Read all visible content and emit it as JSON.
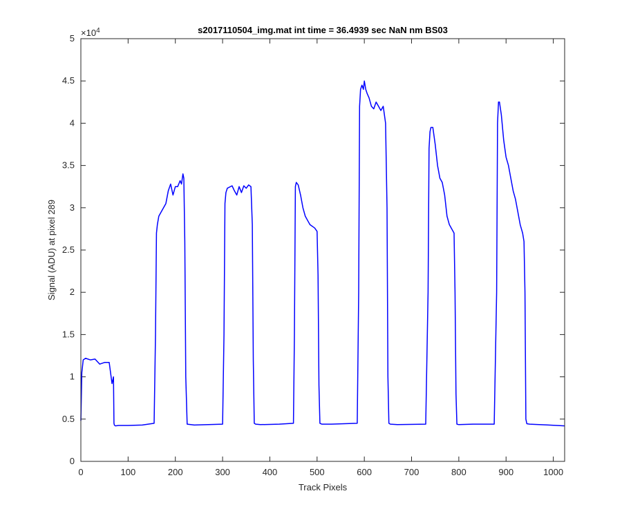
{
  "chart_data": {
    "type": "line",
    "title": "s2017110504_img.mat int time = 36.4939 sec  NaN nm BS03",
    "xlabel": "Track Pixels",
    "ylabel": "Signal (ADU) at pixel 289",
    "exponent_label": "×10",
    "exponent_power": "4",
    "xlim": [
      0,
      1024
    ],
    "ylim": [
      0,
      50000
    ],
    "x_ticks": [
      0,
      100,
      200,
      300,
      400,
      500,
      600,
      700,
      800,
      900,
      1000
    ],
    "x_tick_labels": [
      "0",
      "100",
      "200",
      "300",
      "400",
      "500",
      "600",
      "700",
      "800",
      "900",
      "1000"
    ],
    "y_ticks": [
      0,
      5000,
      10000,
      15000,
      20000,
      25000,
      30000,
      35000,
      40000,
      45000,
      50000
    ],
    "y_tick_labels": [
      "0",
      "0.5",
      "1",
      "1.5",
      "2",
      "2.5",
      "3",
      "3.5",
      "4",
      "4.5",
      "5"
    ],
    "grid": false,
    "line_color": "#0000ff",
    "series": [
      {
        "x": [
          0,
          2,
          5,
          10,
          20,
          30,
          40,
          50,
          60,
          66,
          69,
          70,
          71,
          73,
          80,
          100,
          130,
          155,
          158,
          160,
          162,
          165,
          170,
          180,
          185,
          190,
          195,
          200,
          205,
          210,
          213,
          216,
          218,
          220,
          222,
          225,
          240,
          270,
          300,
          303,
          305,
          307,
          310,
          320,
          325,
          330,
          335,
          340,
          345,
          350,
          355,
          360,
          363,
          365,
          367,
          370,
          380,
          420,
          450,
          452,
          454,
          456,
          460,
          465,
          470,
          475,
          480,
          485,
          490,
          495,
          500,
          502,
          504,
          506,
          510,
          530,
          585,
          588,
          590,
          592,
          595,
          598,
          600,
          603,
          606,
          610,
          615,
          620,
          625,
          630,
          635,
          640,
          645,
          648,
          650,
          652,
          655,
          670,
          730,
          735,
          737,
          739,
          741,
          745,
          750,
          755,
          760,
          765,
          770,
          775,
          780,
          785,
          790,
          792,
          794,
          796,
          800,
          830,
          875,
          880,
          882,
          884,
          886,
          890,
          895,
          900,
          905,
          910,
          915,
          920,
          925,
          930,
          935,
          938,
          940,
          942,
          944,
          950,
          990,
          1024
        ],
        "y": [
          4800,
          10500,
          12000,
          12200,
          12000,
          12100,
          11500,
          11700,
          11700,
          9200,
          10000,
          4500,
          4300,
          4200,
          4250,
          4250,
          4300,
          4500,
          15000,
          27000,
          28000,
          29000,
          29500,
          30500,
          32000,
          32800,
          31500,
          32500,
          32500,
          33200,
          32800,
          34000,
          33500,
          26000,
          10000,
          4400,
          4300,
          4350,
          4400,
          15000,
          30500,
          31800,
          32300,
          32600,
          32000,
          31500,
          32500,
          31800,
          32600,
          32300,
          32700,
          32500,
          28000,
          12000,
          4500,
          4400,
          4350,
          4400,
          4500,
          15000,
          32500,
          33000,
          32700,
          31500,
          30000,
          29000,
          28500,
          28000,
          27800,
          27600,
          27200,
          22000,
          9000,
          4500,
          4400,
          4400,
          4500,
          20000,
          42000,
          44000,
          44500,
          44000,
          45000,
          44000,
          43500,
          43000,
          42000,
          41700,
          42500,
          42000,
          41500,
          42000,
          40000,
          30000,
          10000,
          4500,
          4400,
          4350,
          4400,
          20000,
          37000,
          39000,
          39500,
          39500,
          37500,
          35000,
          33500,
          33000,
          31500,
          29000,
          28000,
          27500,
          27000,
          20000,
          8000,
          4400,
          4350,
          4400,
          4400,
          20000,
          40000,
          42500,
          42500,
          41000,
          38000,
          36000,
          35000,
          33500,
          32000,
          31000,
          29500,
          28000,
          27000,
          26000,
          20000,
          5000,
          4450,
          4400,
          4300,
          4200
        ]
      }
    ]
  }
}
